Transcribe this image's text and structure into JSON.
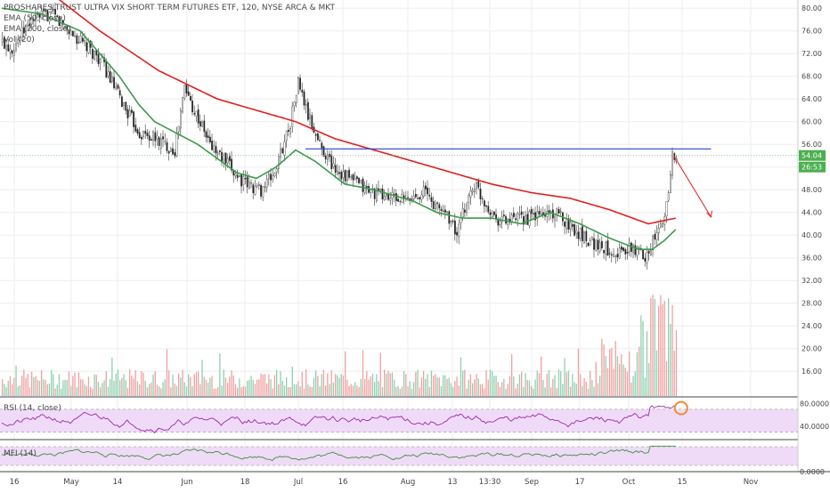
{
  "legend": {
    "title": "PROSHARES TRUST ULTRA VIX SHORT TERM FUTURES ETF, 120, NYSE ARCA & MKT",
    "ema_fast": "EMA (50, close)",
    "ema_slow": "EMA (200, close)",
    "vol": "Vol (20)",
    "rsi": "RSI (14, close)",
    "mfi": "MFI (14)"
  },
  "price_badges": {
    "last": "54.04",
    "countdown": "26:53"
  },
  "colors": {
    "up": "#5ab48c",
    "down": "#e57373",
    "ema_fast": "#3d9a4a",
    "ema_slow": "#e02020",
    "hline": "#2b3fd6",
    "rsi_line": "#9c27b0",
    "mfi_line": "#3e8e3e",
    "band": "#efdbf7"
  },
  "chart_data": [
    {
      "type": "candlestick",
      "name": "price",
      "x_labels": [
        "16",
        "May",
        "14",
        "Jun",
        "18",
        "Jul",
        "16",
        "Aug",
        "13",
        "13:30",
        "Sep",
        "17",
        "Oct",
        "15",
        "Nov"
      ],
      "y_ticks": [
        "80.00",
        "76.00",
        "72.00",
        "68.00",
        "64.00",
        "60.00",
        "56.00",
        "52.00",
        "48.00",
        "44.00",
        "40.00",
        "36.00",
        "32.00",
        "28.00",
        "24.00",
        "20.00",
        "16.00"
      ],
      "ylim": [
        14,
        80.5
      ],
      "series": [
        {
          "name": "close",
          "anchors": [
            [
              0,
              74
            ],
            [
              5,
              73
            ],
            [
              15,
              78
            ],
            [
              25,
              79
            ],
            [
              40,
              74
            ],
            [
              50,
              71
            ],
            [
              60,
              64
            ],
            [
              70,
              58
            ],
            [
              78,
              57
            ],
            [
              88,
              55
            ],
            [
              93,
              66
            ],
            [
              98,
              62
            ],
            [
              106,
              56
            ],
            [
              116,
              52
            ],
            [
              124,
              49
            ],
            [
              132,
              48
            ],
            [
              139,
              51
            ],
            [
              147,
              60
            ],
            [
              151,
              67
            ],
            [
              156,
              61
            ],
            [
              162,
              56
            ],
            [
              169,
              52
            ],
            [
              177,
              50
            ],
            [
              186,
              48
            ],
            [
              194,
              47
            ],
            [
              200,
              46.5
            ],
            [
              207,
              46
            ],
            [
              215,
              48
            ],
            [
              221,
              45
            ],
            [
              227,
              44
            ],
            [
              232,
              40
            ],
            [
              237,
              46
            ],
            [
              241,
              49
            ],
            [
              246,
              46
            ],
            [
              252,
              43
            ],
            [
              259,
              42.5
            ],
            [
              268,
              43
            ],
            [
              280,
              44
            ],
            [
              286,
              43
            ],
            [
              292,
              41
            ],
            [
              298,
              39.5
            ],
            [
              305,
              38
            ],
            [
              314,
              37
            ],
            [
              322,
              37.5
            ],
            [
              328,
              36.5
            ],
            [
              334,
              40
            ],
            [
              338,
              43
            ],
            [
              342,
              54.0
            ]
          ]
        },
        {
          "name": "EMA 50",
          "anchors": [
            [
              0,
              80
            ],
            [
              20,
              79
            ],
            [
              40,
              76
            ],
            [
              60,
              68
            ],
            [
              70,
              63
            ],
            [
              78,
              60
            ],
            [
              100,
              56
            ],
            [
              120,
              51
            ],
            [
              130,
              50
            ],
            [
              140,
              52
            ],
            [
              150,
              55
            ],
            [
              160,
              53
            ],
            [
              175,
              49
            ],
            [
              190,
              48
            ],
            [
              210,
              46
            ],
            [
              222,
              44
            ],
            [
              235,
              43
            ],
            [
              250,
              43
            ],
            [
              265,
              42
            ],
            [
              280,
              44
            ],
            [
              295,
              42
            ],
            [
              310,
              39.5
            ],
            [
              325,
              37.5
            ],
            [
              332,
              37.5
            ],
            [
              338,
              39
            ],
            [
              344,
              41
            ]
          ]
        },
        {
          "name": "EMA 200",
          "anchors": [
            [
              0,
              88
            ],
            [
              20,
              84
            ],
            [
              50,
              76
            ],
            [
              80,
              69
            ],
            [
              110,
              64
            ],
            [
              130,
              62
            ],
            [
              150,
              60
            ],
            [
              170,
              57
            ],
            [
              190,
              55
            ],
            [
              210,
              53
            ],
            [
              230,
              51
            ],
            [
              250,
              49
            ],
            [
              270,
              47.5
            ],
            [
              290,
              46.5
            ],
            [
              310,
              44.5
            ],
            [
              330,
              42
            ],
            [
              344,
              43
            ]
          ]
        }
      ],
      "hline": {
        "value": 55.2,
        "from_bar": 155,
        "to_bar": 362
      },
      "arrow": {
        "from": [
          343,
          54.0
        ],
        "to": [
          362,
          43.2
        ]
      }
    },
    {
      "type": "bar",
      "name": "volume"
    },
    {
      "type": "line",
      "name": "RSI",
      "y_ticks": [
        "80.0000",
        "40.0000"
      ],
      "ylim": [
        20,
        90
      ],
      "band": [
        30,
        70
      ]
    },
    {
      "type": "line",
      "name": "MFI",
      "y_ticks": [
        "0.0000"
      ],
      "ylim": [
        0,
        100
      ],
      "band": [
        20,
        80
      ]
    }
  ]
}
